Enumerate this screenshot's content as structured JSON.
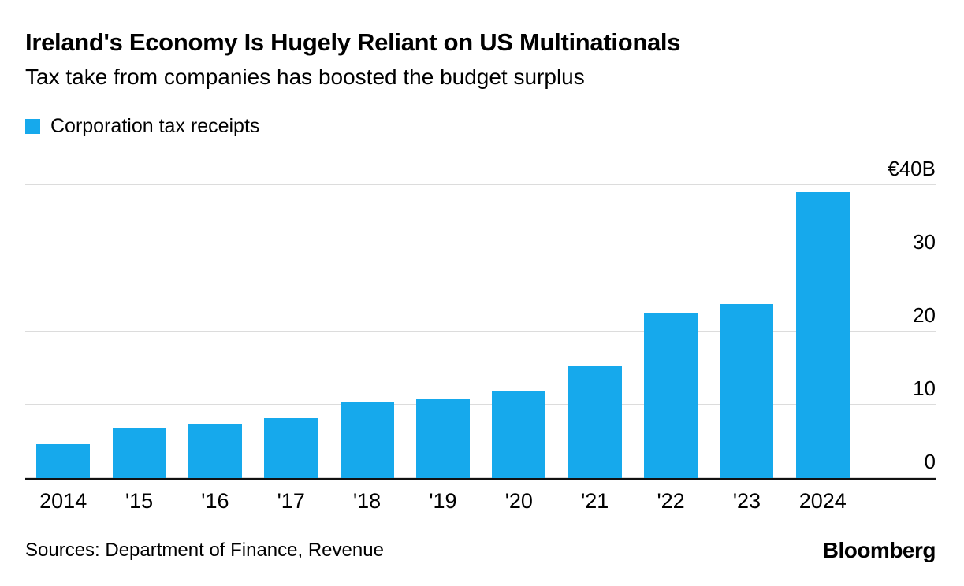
{
  "header": {
    "title": "Ireland's Economy Is Hugely Reliant on US Multinationals",
    "subtitle": "Tax take from companies has boosted the budget surplus"
  },
  "legend": {
    "label": "Corporation tax receipts",
    "color": "#16a9ec"
  },
  "footer": {
    "sources": "Sources: Department of Finance, Revenue",
    "brand": "Bloomberg"
  },
  "chart_data": {
    "type": "bar",
    "title": "Ireland's Economy Is Hugely Reliant on US Multinationals",
    "subtitle": "Tax take from companies has boosted the budget surplus",
    "series_name": "Corporation tax receipts",
    "unit": "EUR billions",
    "categories": [
      "2014",
      "'15",
      "'16",
      "'17",
      "'18",
      "'19",
      "'20",
      "'21",
      "'22",
      "'23",
      "2024"
    ],
    "values": [
      4.6,
      6.9,
      7.4,
      8.2,
      10.4,
      10.9,
      11.8,
      15.3,
      22.6,
      23.8,
      39.1
    ],
    "xlabel": "",
    "ylabel": "",
    "ylim": [
      0,
      42
    ],
    "y_ticks": [
      {
        "value": 0,
        "label": "0"
      },
      {
        "value": 10,
        "label": "10"
      },
      {
        "value": 20,
        "label": "20"
      },
      {
        "value": 30,
        "label": "30"
      },
      {
        "value": 40,
        "label": "€40B"
      }
    ],
    "bar_color": "#16a9ec",
    "grid": "horizontal",
    "tick_side": "right",
    "legend_position": "top-left"
  }
}
